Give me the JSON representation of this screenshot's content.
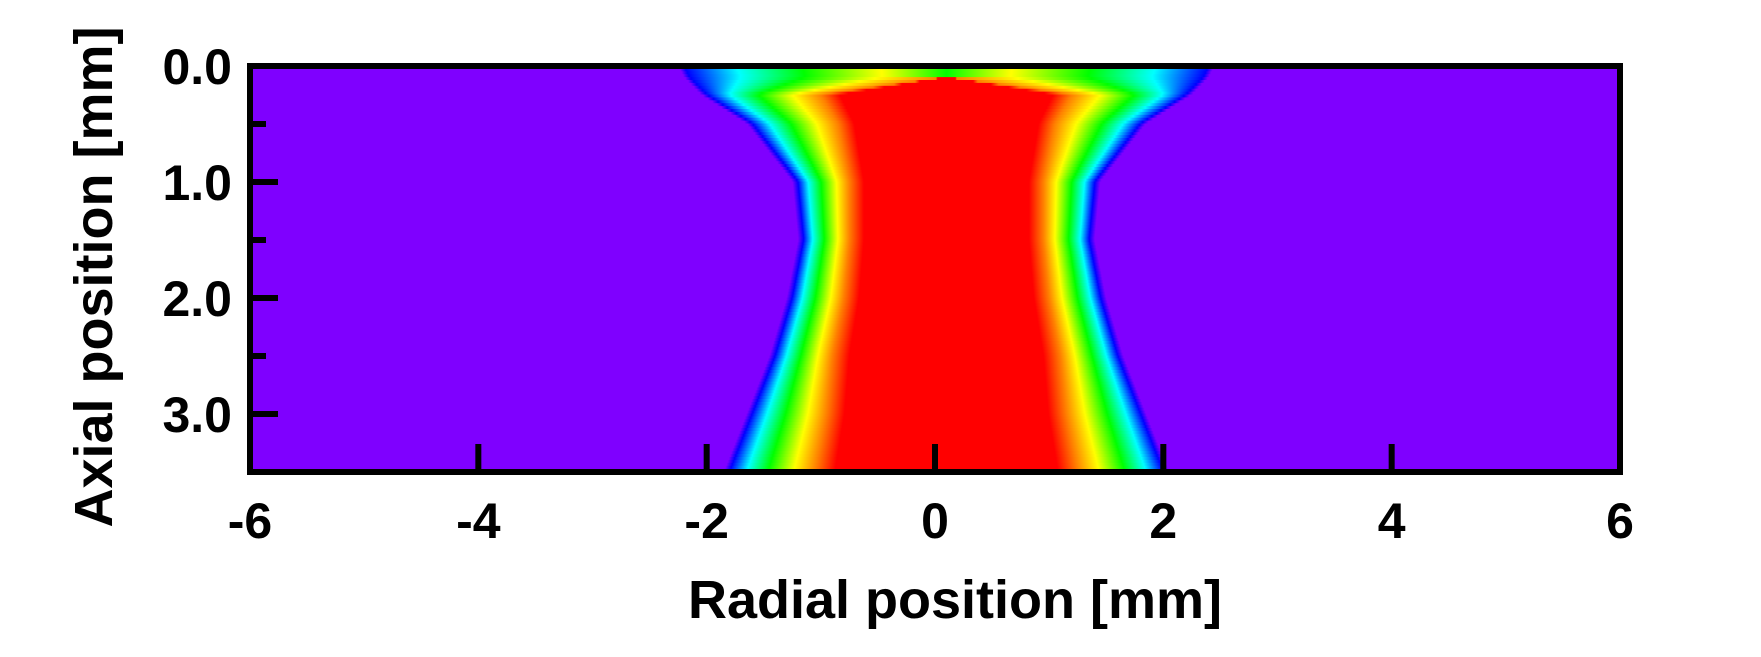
{
  "chart_data": {
    "type": "heatmap",
    "title": "",
    "xlabel": "Radial position [mm]",
    "ylabel": "Axial position [mm]",
    "xlim": [
      -6,
      6
    ],
    "ylim": [
      0.0,
      3.5
    ],
    "y_axis_inverted": true,
    "x_ticks": [
      -6,
      -4,
      -2,
      0,
      2,
      4,
      6
    ],
    "x_tick_labels": [
      "-6",
      "-4",
      "-2",
      "0",
      "2",
      "4",
      "6"
    ],
    "y_ticks": [
      0.0,
      1.0,
      2.0,
      3.0
    ],
    "y_tick_labels": [
      "0.0",
      "1.0",
      "2.0",
      "3.0"
    ],
    "y_minor_ticks": [
      0.5,
      1.5,
      2.5
    ],
    "grid": false,
    "legend": "none",
    "colormap": [
      "#7f00ff",
      "#0000ff",
      "#00ffff",
      "#00ff00",
      "#ffff00",
      "#ff8000",
      "#ff0000"
    ],
    "background_color": "#7f00ff",
    "profile": {
      "description_units": "axial position [mm] vs radial half-widths [mm] of colour bands",
      "axial": [
        0.0,
        0.1,
        0.25,
        0.5,
        1.0,
        1.5,
        2.0,
        2.5,
        3.0,
        3.5
      ],
      "core_half_width": [
        0.0,
        0.0,
        1.1,
        0.95,
        0.85,
        0.85,
        0.9,
        1.0,
        1.05,
        1.15
      ],
      "outer_half_width": [
        2.3,
        2.25,
        2.1,
        1.7,
        1.3,
        1.25,
        1.35,
        1.5,
        1.7,
        1.9
      ],
      "center_offset": 0.1
    }
  }
}
